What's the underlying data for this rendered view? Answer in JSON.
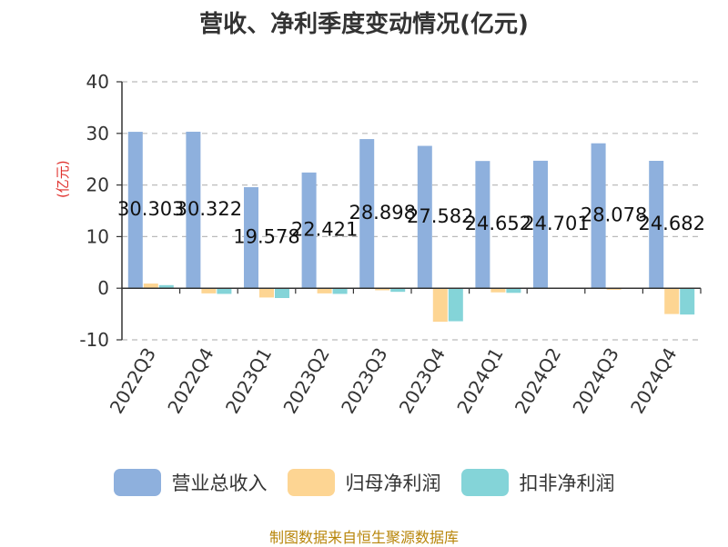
{
  "chart_data": {
    "type": "bar",
    "title": "营收、净利季度变动情况(亿元)",
    "ylabel": "(亿元)",
    "xlabel": "",
    "ylim": [
      -10,
      40
    ],
    "yticks": [
      -10,
      0,
      10,
      20,
      30,
      40
    ],
    "grid": true,
    "legend_position": "bottom",
    "categories": [
      "2022Q3",
      "2022Q4",
      "2023Q1",
      "2023Q2",
      "2023Q3",
      "2023Q4",
      "2024Q1",
      "2024Q2",
      "2024Q3",
      "2024Q4"
    ],
    "series": [
      {
        "name": "营业总收入",
        "color": "#8eb0dd",
        "values": [
          30.303,
          30.322,
          19.578,
          22.421,
          28.898,
          27.582,
          24.652,
          24.701,
          28.078,
          24.682
        ],
        "labels": [
          "30.303",
          "30.322",
          "19.578",
          "22.421",
          "28.898",
          "27.582",
          "24.652",
          "24.701",
          "28.078",
          "24.682"
        ]
      },
      {
        "name": "归母净利润",
        "color": "#fdd593",
        "values": [
          0.9,
          -1.0,
          -1.8,
          -1.0,
          -0.4,
          -6.5,
          -0.8,
          0.1,
          -0.3,
          -5.0
        ]
      },
      {
        "name": "扣非净利润",
        "color": "#84d4d8",
        "values": [
          0.6,
          -1.1,
          -1.9,
          -1.1,
          -0.7,
          -6.4,
          -0.9,
          0.1,
          0.0,
          -5.1
        ]
      }
    ]
  },
  "footer": "制图数据来自恒生聚源数据库"
}
